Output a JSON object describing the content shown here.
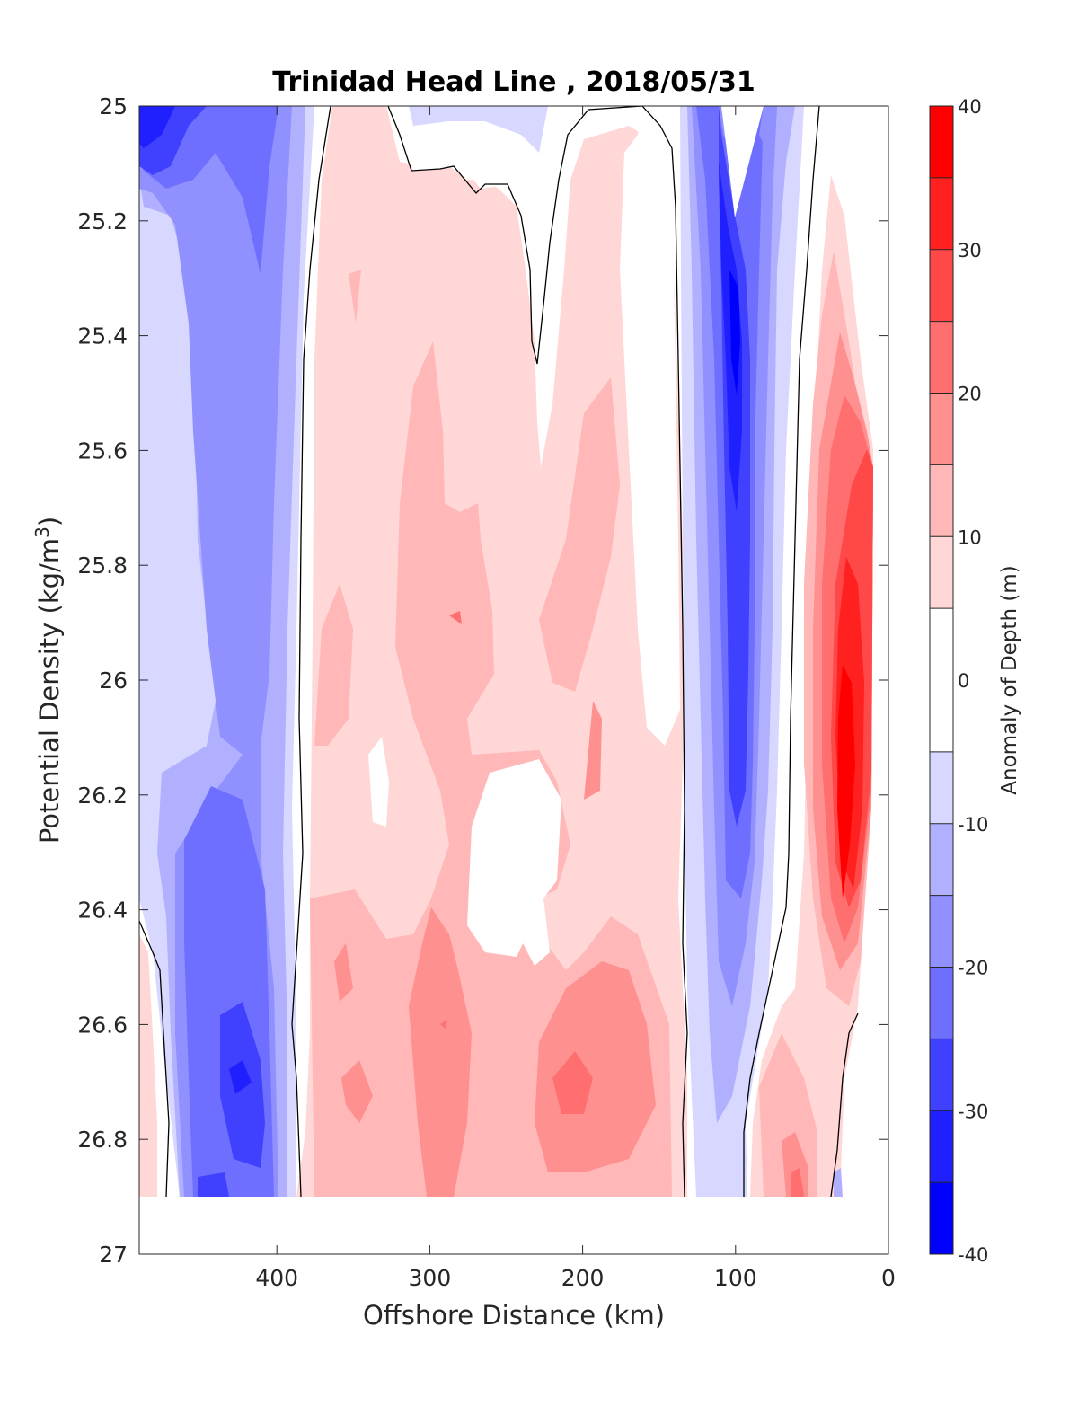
{
  "chart_data": {
    "type": "heatmap",
    "subtype": "filled-contour",
    "title": "Trinidad Head Line , 2018/05/31",
    "xlabel": "Offshore Distance (km)",
    "ylabel": "Potential Density (kg/m",
    "ylabel_sup": "3",
    "ylabel_close": ")",
    "xlim": [
      490,
      0
    ],
    "ylim": [
      25,
      27
    ],
    "x_reversed": true,
    "y_reversed": true,
    "xticks": [
      "400",
      "300",
      "200",
      "100",
      "0"
    ],
    "xtick_values": [
      400,
      300,
      200,
      100,
      0
    ],
    "yticks": [
      "25",
      "25.2",
      "25.4",
      "25.6",
      "25.8",
      "26",
      "26.2",
      "26.4",
      "26.6",
      "26.8",
      "27"
    ],
    "ytick_values": [
      25,
      25.2,
      25.4,
      25.6,
      25.8,
      26,
      26.2,
      26.4,
      26.6,
      26.8,
      27
    ],
    "colorbar": {
      "label": "Anomaly of Depth (m)",
      "ticks": [
        "-40",
        "-30",
        "-20",
        "-10",
        "0",
        "10",
        "20",
        "30",
        "40"
      ],
      "tick_values": [
        -40,
        -30,
        -20,
        -10,
        0,
        10,
        20,
        30,
        40
      ],
      "levels": [
        -40,
        -35,
        -30,
        -25,
        -20,
        -15,
        -10,
        -5,
        5,
        10,
        15,
        20,
        25,
        30,
        35,
        40
      ],
      "colors": [
        "#0000ff",
        "#2020ff",
        "#4040ff",
        "#6f6fff",
        "#9090ff",
        "#b0b0ff",
        "#d7d7ff",
        "#ffffff",
        "#ffd7d7",
        "#ffb7b7",
        "#ff9090",
        "#ff6f6f",
        "#ff4848",
        "#ff2020",
        "#ff0000"
      ],
      "range": [
        -40,
        40
      ]
    },
    "profile_x": [
      480,
      460,
      440,
      420,
      400,
      380,
      360,
      340,
      320,
      300,
      280,
      260,
      240,
      220,
      200,
      180,
      160,
      140,
      120,
      100,
      80,
      60,
      40,
      20
    ],
    "profile_depth": "unlabeled (data bottom at sigma 26.9)",
    "anomaly_bands": [
      {
        "x_range": [
          490,
          395
        ],
        "sigma_range": [
          25.0,
          26.9
        ],
        "anomaly": -15,
        "note": "negative anomaly, strongest (~-25 to -30) near sigma 25.0 at 490 km and near sigma 26.7 at 420 km"
      },
      {
        "x_range": [
          375,
          150
        ],
        "sigma_range": [
          25.0,
          26.9
        ],
        "anomaly": 10,
        "note": "positive anomaly 5-20, peaks ~20 near sigma 26.7 at 210 km"
      },
      {
        "x_range": [
          260,
          210
        ],
        "sigma_range": [
          25.0,
          25.6
        ],
        "anomaly": 0,
        "note": "near-zero region"
      },
      {
        "x_range": [
          130,
          75
        ],
        "sigma_range": [
          25.0,
          26.9
        ],
        "anomaly": -25,
        "note": "strong negative anomaly, minimum ~-35 near sigma 25.4 at 100 km"
      },
      {
        "x_range": [
          60,
          10
        ],
        "sigma_range": [
          25.1,
          26.6
        ],
        "anomaly": 25,
        "note": "strong positive anomaly, maximum ~35 near sigma 26.1 at 30 km"
      }
    ]
  }
}
